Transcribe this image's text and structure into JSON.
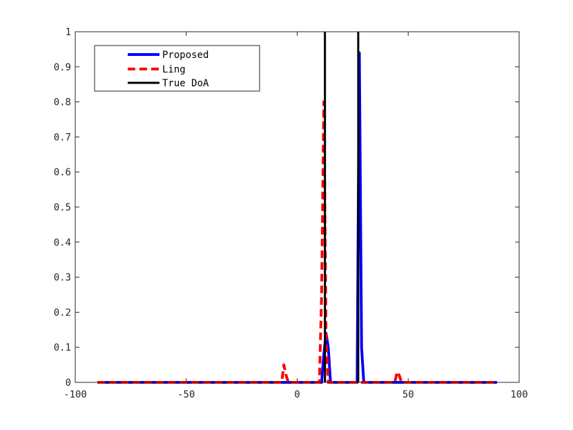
{
  "chart_data": {
    "type": "line",
    "title": "",
    "xlabel": "",
    "ylabel": "",
    "xlim": [
      -100,
      100
    ],
    "ylim": [
      0,
      1
    ],
    "x_ticks": [
      -100,
      -50,
      0,
      50,
      100
    ],
    "x_tick_labels": [
      "-100",
      "-50",
      "0",
      "50",
      "100"
    ],
    "y_ticks": [
      0,
      0.1,
      0.2,
      0.3,
      0.4,
      0.5,
      0.6,
      0.7,
      0.8,
      0.9,
      1
    ],
    "y_tick_labels": [
      "0",
      "0.1",
      "0.2",
      "0.3",
      "0.4",
      "0.5",
      "0.6",
      "0.7",
      "0.8",
      "0.9",
      "1"
    ],
    "grid": false,
    "legend_position": "top-left",
    "series": [
      {
        "name": "Proposed",
        "color": "#0000ff",
        "style": "solid",
        "x": [
          -90,
          11,
          12,
          13,
          14,
          15,
          27,
          28,
          29,
          30,
          90
        ],
        "y": [
          0,
          0,
          0.08,
          0.14,
          0.1,
          0,
          0,
          0.94,
          0.1,
          0,
          0
        ]
      },
      {
        "name": "Ling",
        "color": "#ff0000",
        "style": "dashed",
        "x": [
          -90,
          -7,
          -6,
          -5,
          -4,
          10,
          11,
          12,
          13,
          14,
          15,
          44,
          45,
          46,
          47,
          48,
          90
        ],
        "y": [
          0,
          0,
          0.05,
          0.02,
          0,
          0,
          0.25,
          0.8,
          0.12,
          0,
          0,
          0,
          0.03,
          0.02,
          0,
          0,
          0
        ]
      },
      {
        "name": "True DoA",
        "color": "#000000",
        "style": "solid",
        "x": [
          12.5,
          12.5,
          27.5,
          27.5
        ],
        "y": [
          0,
          1,
          0,
          1
        ],
        "segments": [
          [
            0,
            1
          ],
          [
            2,
            3
          ]
        ]
      }
    ]
  }
}
